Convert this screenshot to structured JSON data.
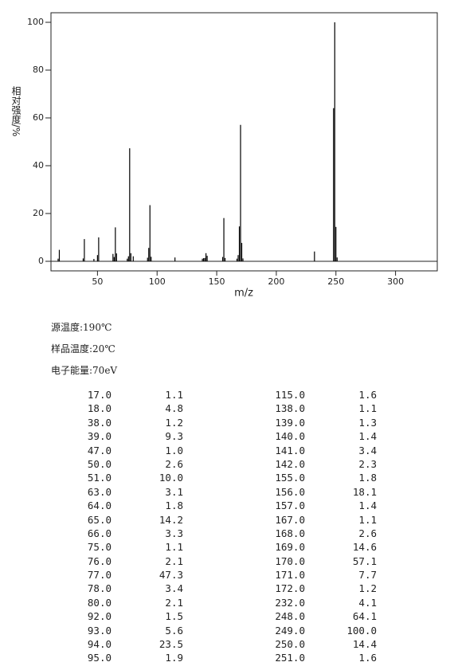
{
  "chart_data": {
    "type": "bar",
    "x_label": "m/z",
    "y_label": "相对强度/%",
    "x": [
      17,
      18,
      38,
      39,
      47,
      50,
      51,
      63,
      64,
      65,
      66,
      75,
      76,
      77,
      78,
      80,
      92,
      93,
      94,
      95,
      115,
      138,
      139,
      140,
      141,
      142,
      155,
      156,
      157,
      167,
      168,
      169,
      170,
      171,
      172,
      232,
      248,
      249,
      250,
      251
    ],
    "values": [
      1.1,
      4.8,
      1.2,
      9.3,
      1.0,
      2.6,
      10.0,
      3.1,
      1.8,
      14.2,
      3.3,
      1.1,
      2.1,
      47.3,
      3.4,
      2.1,
      1.5,
      5.6,
      23.5,
      1.9,
      1.6,
      1.1,
      1.3,
      1.4,
      3.4,
      2.3,
      1.8,
      18.1,
      1.4,
      1.1,
      2.6,
      14.6,
      57.1,
      7.7,
      1.2,
      4.1,
      64.1,
      100.0,
      14.4,
      1.6
    ],
    "color": "#000000",
    "xlim": [
      11,
      335
    ],
    "xticks": [
      50,
      100,
      150,
      200,
      250,
      300
    ],
    "ylim": [
      -4,
      104
    ],
    "yticks": [
      0,
      20,
      40,
      60,
      80,
      100
    ]
  },
  "info": [
    "源温度:190℃",
    "样品温度:20℃",
    "电子能量:70eV"
  ],
  "table": {
    "rows": [
      [
        "17.0",
        "1.1",
        "115.0",
        "1.6"
      ],
      [
        "18.0",
        "4.8",
        "138.0",
        "1.1"
      ],
      [
        "38.0",
        "1.2",
        "139.0",
        "1.3"
      ],
      [
        "39.0",
        "9.3",
        "140.0",
        "1.4"
      ],
      [
        "47.0",
        "1.0",
        "141.0",
        "3.4"
      ],
      [
        "50.0",
        "2.6",
        "142.0",
        "2.3"
      ],
      [
        "51.0",
        "10.0",
        "155.0",
        "1.8"
      ],
      [
        "63.0",
        "3.1",
        "156.0",
        "18.1"
      ],
      [
        "64.0",
        "1.8",
        "157.0",
        "1.4"
      ],
      [
        "65.0",
        "14.2",
        "167.0",
        "1.1"
      ],
      [
        "66.0",
        "3.3",
        "168.0",
        "2.6"
      ],
      [
        "75.0",
        "1.1",
        "169.0",
        "14.6"
      ],
      [
        "76.0",
        "2.1",
        "170.0",
        "57.1"
      ],
      [
        "77.0",
        "47.3",
        "171.0",
        "7.7"
      ],
      [
        "78.0",
        "3.4",
        "172.0",
        "1.2"
      ],
      [
        "80.0",
        "2.1",
        "232.0",
        "4.1"
      ],
      [
        "92.0",
        "1.5",
        "248.0",
        "64.1"
      ],
      [
        "93.0",
        "5.6",
        "249.0",
        "100.0"
      ],
      [
        "94.0",
        "23.5",
        "250.0",
        "14.4"
      ],
      [
        "95.0",
        "1.9",
        "251.0",
        "1.6"
      ]
    ]
  }
}
